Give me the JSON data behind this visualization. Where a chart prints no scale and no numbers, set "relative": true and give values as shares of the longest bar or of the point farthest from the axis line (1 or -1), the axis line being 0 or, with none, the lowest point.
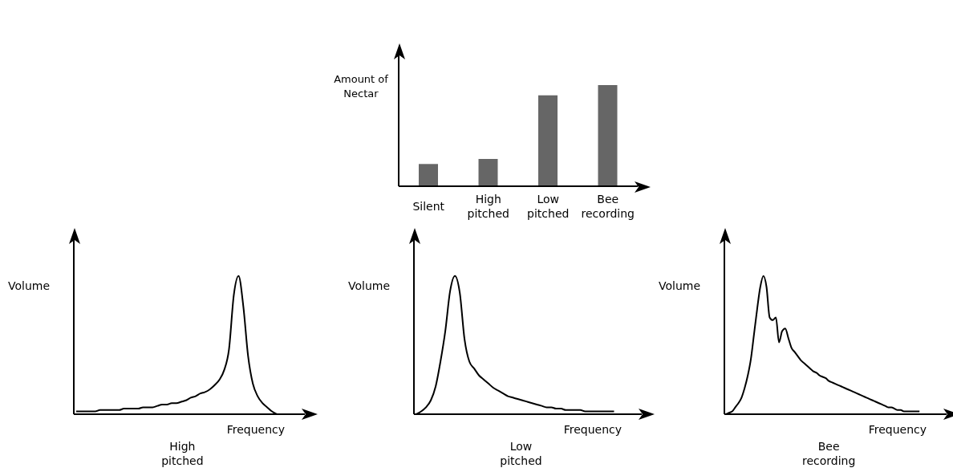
{
  "chart_data": [
    {
      "type": "bar",
      "ylabel": "Amount of Nectar",
      "categories": [
        "Silent",
        "High pitched",
        "Low pitched",
        "Bee recording"
      ],
      "values": [
        0.22,
        0.27,
        0.9,
        1
      ],
      "color": "#666666",
      "relative": true
    },
    {
      "type": "line",
      "ylabel": "Volume",
      "xlabel": "Frequency",
      "annotations": [
        "High pitched"
      ],
      "color": "#000000",
      "relative": true,
      "categories": [
        null,
        null,
        null,
        null,
        null,
        null,
        null,
        null,
        null,
        null,
        null,
        null,
        null,
        null,
        null,
        null,
        null,
        null,
        null,
        null,
        null,
        null,
        null,
        null,
        null,
        null,
        null,
        null,
        null,
        null,
        null,
        null,
        null,
        null,
        null,
        null,
        null,
        null,
        null,
        null,
        null,
        null,
        null
      ],
      "values": [
        0.02,
        0.02,
        0.02,
        0.02,
        0.02,
        0.03,
        0.03,
        0.03,
        0.03,
        0.03,
        0.04,
        0.04,
        0.04,
        0.04,
        0.05,
        0.05,
        0.05,
        0.06,
        0.07,
        0.07,
        0.08,
        0.08,
        0.09,
        0.1,
        0.12,
        0.13,
        0.15,
        0.16,
        0.18,
        0.21,
        0.25,
        0.32,
        0.47,
        0.86,
        1,
        0.78,
        0.42,
        0.22,
        0.13,
        0.08,
        0.05,
        0.02,
        0
      ]
    },
    {
      "type": "line",
      "ylabel": "Volume",
      "xlabel": "Frequency",
      "annotations": [
        "Low pitched"
      ],
      "color": "#000000",
      "relative": true,
      "categories": [
        null,
        null,
        null,
        null,
        null,
        null,
        null,
        null,
        null,
        null,
        null,
        null,
        null,
        null,
        null,
        null,
        null,
        null,
        null,
        null,
        null,
        null,
        null,
        null,
        null,
        null,
        null,
        null,
        null,
        null,
        null,
        null,
        null,
        null,
        null,
        null,
        null,
        null,
        null,
        null,
        null,
        null
      ],
      "values": [
        0,
        0.02,
        0.05,
        0.1,
        0.2,
        0.38,
        0.6,
        0.89,
        1,
        0.88,
        0.54,
        0.38,
        0.33,
        0.28,
        0.25,
        0.22,
        0.19,
        0.17,
        0.15,
        0.13,
        0.12,
        0.11,
        0.1,
        0.09,
        0.08,
        0.07,
        0.06,
        0.05,
        0.05,
        0.04,
        0.04,
        0.03,
        0.03,
        0.03,
        0.03,
        0.02,
        0.02,
        0.02,
        0.02,
        0.02,
        0.02,
        0.02
      ]
    },
    {
      "type": "line",
      "ylabel": "Volume",
      "xlabel": "Frequency",
      "annotations": [
        "Bee recording"
      ],
      "color": "#000000",
      "relative": true,
      "categories": [
        null,
        null,
        null,
        null,
        null,
        null,
        null,
        null,
        null,
        null,
        null,
        null,
        null,
        null,
        null,
        null,
        null,
        null,
        null,
        null,
        null,
        null,
        null,
        null,
        null,
        null,
        null,
        null,
        null,
        null,
        null,
        null,
        null,
        null,
        null,
        null,
        null,
        null,
        null,
        null,
        null,
        null,
        null,
        null,
        null,
        null,
        null,
        null,
        null,
        null,
        null,
        null,
        null,
        null,
        null,
        null,
        null,
        null,
        null,
        null,
        null,
        null,
        null
      ],
      "values": [
        0,
        0.01,
        0.02,
        0.05,
        0.08,
        0.12,
        0.19,
        0.28,
        0.4,
        0.58,
        0.76,
        0.92,
        1,
        0.92,
        0.7,
        0.68,
        0.7,
        0.52,
        0.6,
        0.62,
        0.55,
        0.48,
        0.45,
        0.42,
        0.39,
        0.37,
        0.35,
        0.33,
        0.31,
        0.3,
        0.28,
        0.27,
        0.26,
        0.24,
        0.23,
        0.22,
        0.21,
        0.2,
        0.19,
        0.18,
        0.17,
        0.16,
        0.15,
        0.14,
        0.13,
        0.12,
        0.11,
        0.1,
        0.09,
        0.08,
        0.07,
        0.06,
        0.05,
        0.05,
        0.04,
        0.03,
        0.03,
        0.02,
        0.02,
        0.02,
        0.02,
        0.02,
        0.02
      ]
    }
  ]
}
